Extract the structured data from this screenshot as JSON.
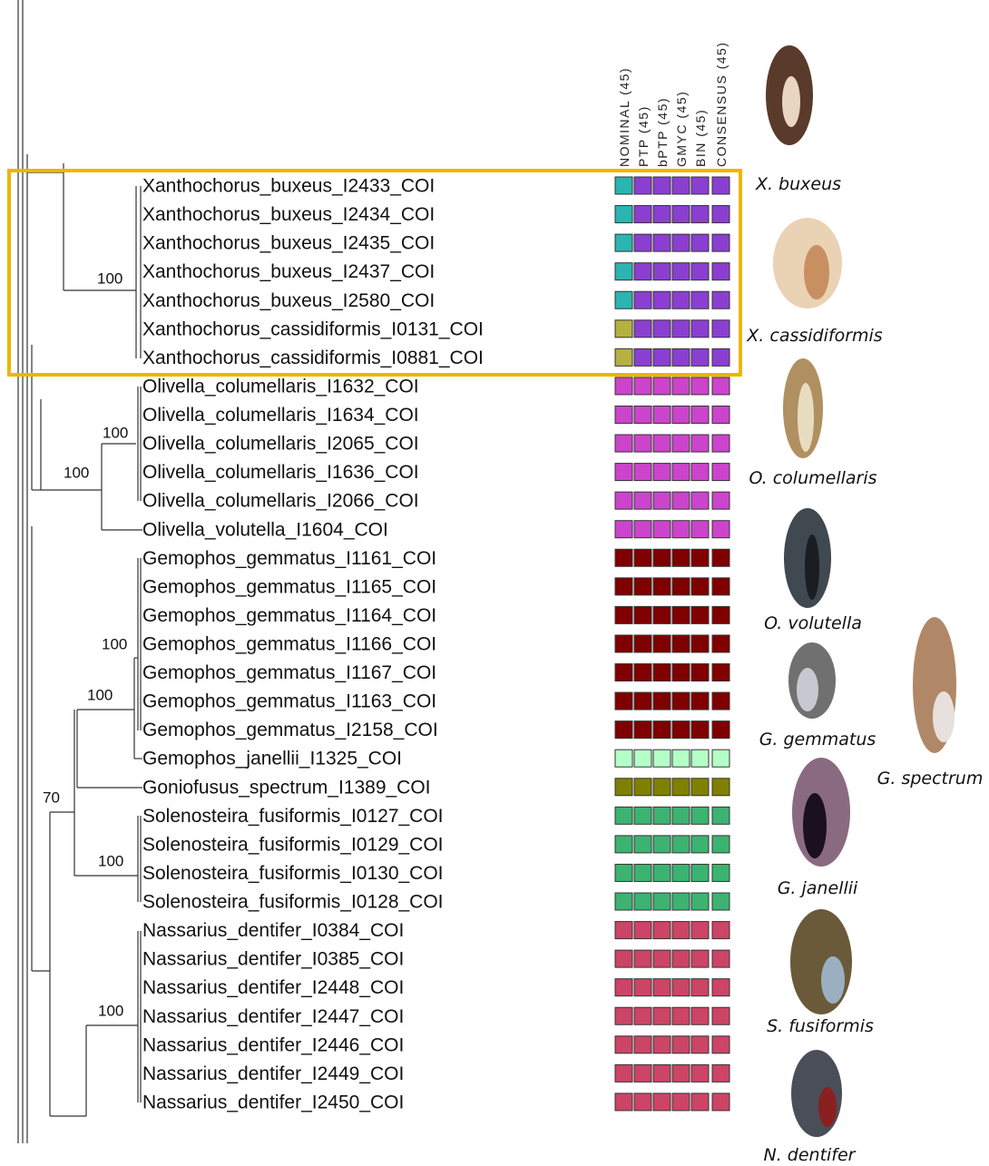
{
  "columns": [
    "NOMINAL (45)",
    "PTP (45)",
    "bPTP (45)",
    "GMYC (45)",
    "BIN (45)",
    "CONSENSUS (45)"
  ],
  "taxa": [
    {
      "label": "Xanthochorus_buxeus_I2433_COI",
      "nominal_color": "#2ab5b0",
      "delim_color": "#8b3fd0"
    },
    {
      "label": "Xanthochorus_buxeus_I2434_COI",
      "nominal_color": "#2ab5b0",
      "delim_color": "#8b3fd0"
    },
    {
      "label": "Xanthochorus_buxeus_I2435_COI",
      "nominal_color": "#2ab5b0",
      "delim_color": "#8b3fd0"
    },
    {
      "label": "Xanthochorus_buxeus_I2437_COI",
      "nominal_color": "#2ab5b0",
      "delim_color": "#8b3fd0"
    },
    {
      "label": "Xanthochorus_buxeus_I2580_COI",
      "nominal_color": "#2ab5b0",
      "delim_color": "#8b3fd0"
    },
    {
      "label": "Xanthochorus_cassidiformis_I0131_COI",
      "nominal_color": "#b5b040",
      "delim_color": "#8b3fd0"
    },
    {
      "label": "Xanthochorus_cassidiformis_I0881_COI",
      "nominal_color": "#b5b040",
      "delim_color": "#8b3fd0"
    },
    {
      "label": "Olivella_columellaris_I1632_COI",
      "nominal_color": "#cc44cc",
      "delim_color": "#cc44cc"
    },
    {
      "label": "Olivella_columellaris_I1634_COI",
      "nominal_color": "#cc44cc",
      "delim_color": "#cc44cc"
    },
    {
      "label": "Olivella_columellaris_I2065_COI",
      "nominal_color": "#cc44cc",
      "delim_color": "#cc44cc"
    },
    {
      "label": "Olivella_columellaris_I1636_COI",
      "nominal_color": "#cc44cc",
      "delim_color": "#cc44cc"
    },
    {
      "label": "Olivella_columellaris_I2066_COI",
      "nominal_color": "#cc44cc",
      "delim_color": "#cc44cc"
    },
    {
      "label": "Olivella_volutella_I1604_COI",
      "nominal_color": "#cc44cc",
      "delim_color": "#cc44cc"
    },
    {
      "label": "Gemophos_gemmatus_I1161_COI",
      "nominal_color": "#800000",
      "delim_color": "#800000"
    },
    {
      "label": "Gemophos_gemmatus_I1165_COI",
      "nominal_color": "#800000",
      "delim_color": "#800000"
    },
    {
      "label": "Gemophos_gemmatus_I1164_COI",
      "nominal_color": "#800000",
      "delim_color": "#800000"
    },
    {
      "label": "Gemophos_gemmatus_I1166_COI",
      "nominal_color": "#800000",
      "delim_color": "#800000"
    },
    {
      "label": "Gemophos_gemmatus_I1167_COI",
      "nominal_color": "#800000",
      "delim_color": "#800000"
    },
    {
      "label": "Gemophos_gemmatus_I1163_COI",
      "nominal_color": "#800000",
      "delim_color": "#800000"
    },
    {
      "label": "Gemophos_gemmatus_I2158_COI",
      "nominal_color": "#800000",
      "delim_color": "#800000"
    },
    {
      "label": "Gemophos_janellii_I1325_COI",
      "nominal_color": "#b4ffc8",
      "delim_color": "#b4ffc8"
    },
    {
      "label": "Goniofusus_spectrum_I1389_COI",
      "nominal_color": "#808000",
      "delim_color": "#808000"
    },
    {
      "label": "Solenosteira_fusiformis_I0127_COI",
      "nominal_color": "#3cb371",
      "delim_color": "#3cb371"
    },
    {
      "label": "Solenosteira_fusiformis_I0129_COI",
      "nominal_color": "#3cb371",
      "delim_color": "#3cb371"
    },
    {
      "label": "Solenosteira_fusiformis_I0130_COI",
      "nominal_color": "#3cb371",
      "delim_color": "#3cb371"
    },
    {
      "label": "Solenosteira_fusiformis_I0128_COI",
      "nominal_color": "#3cb371",
      "delim_color": "#3cb371"
    },
    {
      "label": "Nassarius_dentifer_I0384_COI",
      "nominal_color": "#cc4466",
      "delim_color": "#cc4466"
    },
    {
      "label": "Nassarius_dentifer_I0385_COI",
      "nominal_color": "#cc4466",
      "delim_color": "#cc4466"
    },
    {
      "label": "Nassarius_dentifer_I2448_COI",
      "nominal_color": "#cc4466",
      "delim_color": "#cc4466"
    },
    {
      "label": "Nassarius_dentifer_I2447_COI",
      "nominal_color": "#cc4466",
      "delim_color": "#cc4466"
    },
    {
      "label": "Nassarius_dentifer_I2446_COI",
      "nominal_color": "#cc4466",
      "delim_color": "#cc4466"
    },
    {
      "label": "Nassarius_dentifer_I2449_COI",
      "nominal_color": "#cc4466",
      "delim_color": "#cc4466"
    },
    {
      "label": "Nassarius_dentifer_I2450_COI",
      "nominal_color": "#cc4466",
      "delim_color": "#cc4466"
    }
  ],
  "bootstrap": [
    "100",
    "100",
    "100",
    "100",
    "100",
    "70",
    "100",
    "100"
  ],
  "captions": [
    "X. buxeus",
    "X. cassidiformis",
    "O. columellaris",
    "O. volutella",
    "G. gemmatus",
    "G. spectrum",
    "G. janellii",
    "S. fusiformis",
    "N. dentifer"
  ]
}
